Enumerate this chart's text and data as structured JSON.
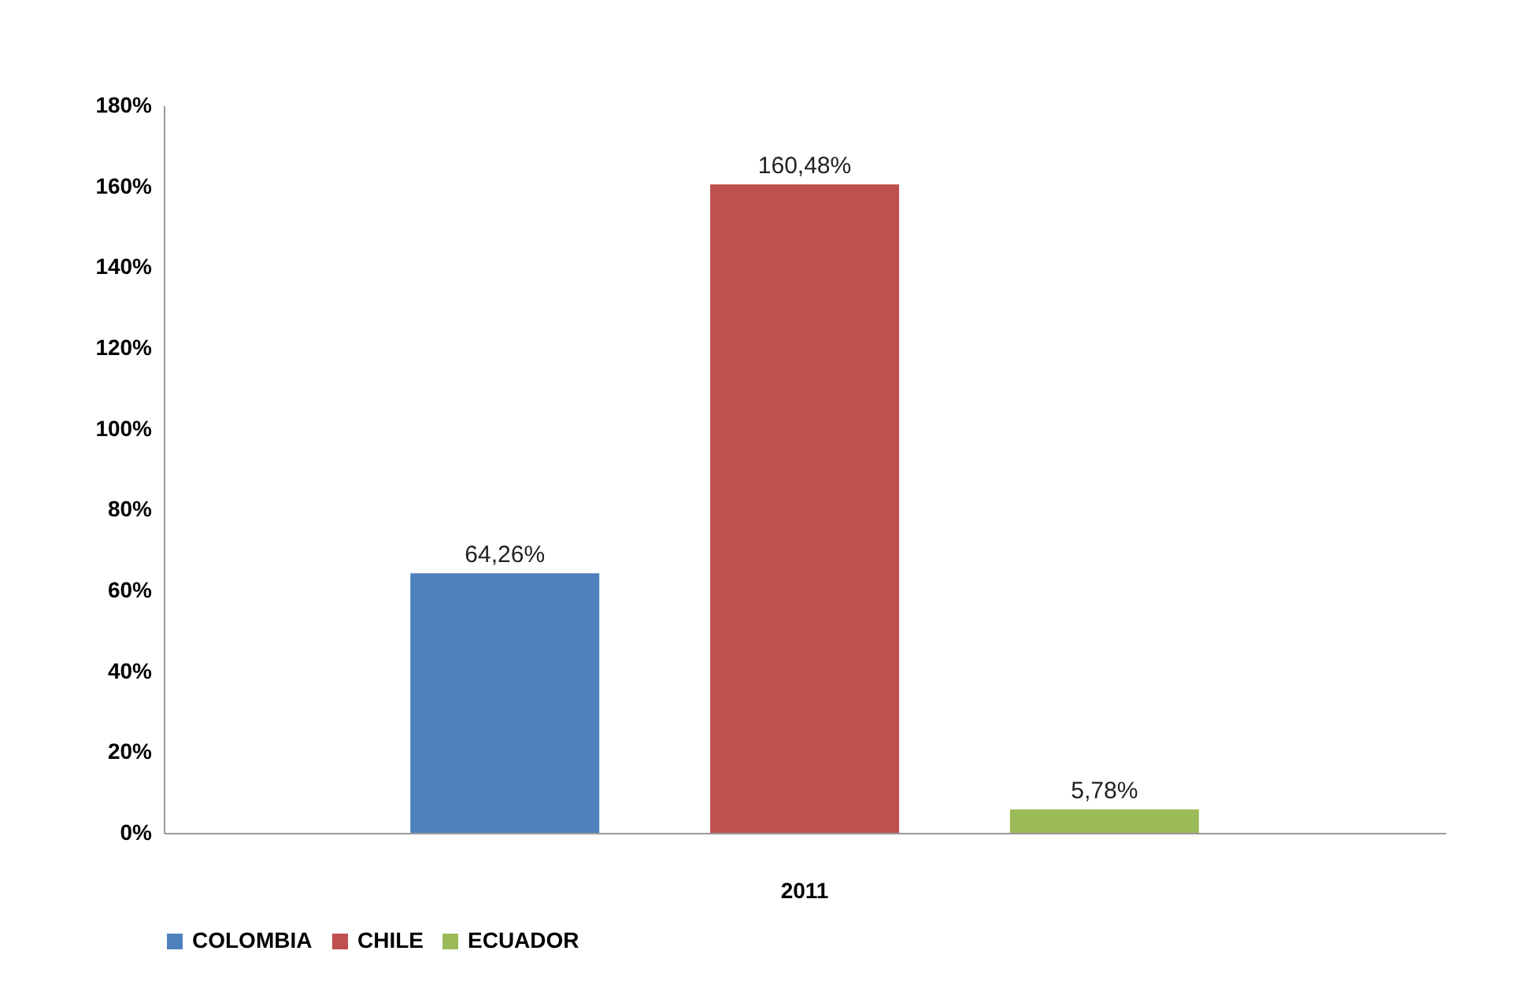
{
  "chart_data": {
    "type": "bar",
    "categories": [
      "2011"
    ],
    "series": [
      {
        "name": "COLOMBIA",
        "color": "#4f81bd",
        "values": [
          64.26
        ],
        "value_labels": [
          "64,26%"
        ]
      },
      {
        "name": "CHILE",
        "color": "#c0504d",
        "values": [
          160.48
        ],
        "value_labels": [
          "160,48%"
        ]
      },
      {
        "name": "ECUADOR",
        "color": "#9bbb59",
        "values": [
          5.78
        ],
        "value_labels": [
          "5,78%"
        ]
      }
    ],
    "ylim": [
      0,
      180
    ],
    "yticks": [
      {
        "value": 0,
        "label": "0%"
      },
      {
        "value": 20,
        "label": "20%"
      },
      {
        "value": 40,
        "label": "40%"
      },
      {
        "value": 60,
        "label": "60%"
      },
      {
        "value": 80,
        "label": "80%"
      },
      {
        "value": 100,
        "label": "100%"
      },
      {
        "value": 120,
        "label": "120%"
      },
      {
        "value": 140,
        "label": "140%"
      },
      {
        "value": 160,
        "label": "160%"
      },
      {
        "value": 180,
        "label": "180%"
      }
    ],
    "grid": false,
    "legend": "bottom"
  }
}
